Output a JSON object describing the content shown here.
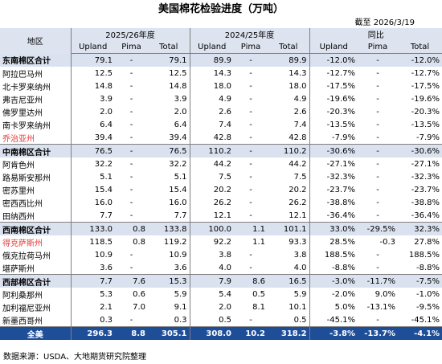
{
  "title": "美国棉花检验进度（万吨）",
  "as_of": "截至  2026/3/19",
  "header": {
    "region": "地区",
    "groups": [
      "2025/26年度",
      "2024/25年度",
      "同比"
    ],
    "cols": [
      "Upland",
      "Pima",
      "Total"
    ]
  },
  "rows": [
    {
      "type": "sub",
      "name": "东南棉区合计",
      "v": [
        "79.1",
        "-",
        "79.1",
        "89.9",
        "-",
        "89.9",
        "-12.0%",
        "-",
        "-12.0%"
      ]
    },
    {
      "type": "row",
      "name": "阿拉巴马州",
      "v": [
        "12.5",
        "-",
        "12.5",
        "14.3",
        "-",
        "14.3",
        "-12.7%",
        "-",
        "-12.7%"
      ]
    },
    {
      "type": "row",
      "name": "北卡罗来纳州",
      "v": [
        "14.8",
        "-",
        "14.8",
        "18.0",
        "-",
        "18.0",
        "-17.5%",
        "-",
        "-17.5%"
      ]
    },
    {
      "type": "row",
      "name": "弗吉尼亚州",
      "v": [
        "3.9",
        "-",
        "3.9",
        "4.9",
        "-",
        "4.9",
        "-19.6%",
        "-",
        "-19.6%"
      ]
    },
    {
      "type": "row",
      "name": "佛罗里达州",
      "v": [
        "2.0",
        "-",
        "2.0",
        "2.6",
        "-",
        "2.6",
        "-20.3%",
        "-",
        "-20.3%"
      ]
    },
    {
      "type": "row",
      "name": "南卡罗来纳州",
      "v": [
        "6.4",
        "-",
        "6.4",
        "7.4",
        "-",
        "7.4",
        "-13.5%",
        "-",
        "-13.5%"
      ]
    },
    {
      "type": "red",
      "name": "乔治亚州",
      "v": [
        "39.4",
        "-",
        "39.4",
        "42.8",
        "-",
        "42.8",
        "-7.9%",
        "-",
        "-7.9%"
      ]
    },
    {
      "type": "sub",
      "name": "中南棉区合计",
      "v": [
        "76.5",
        "-",
        "76.5",
        "110.2",
        "-",
        "110.2",
        "-30.6%",
        "-",
        "-30.6%"
      ]
    },
    {
      "type": "row",
      "name": "阿肯色州",
      "v": [
        "32.2",
        "-",
        "32.2",
        "44.2",
        "-",
        "44.2",
        "-27.1%",
        "-",
        "-27.1%"
      ]
    },
    {
      "type": "row",
      "name": "路易斯安那州",
      "v": [
        "5.1",
        "-",
        "5.1",
        "7.5",
        "-",
        "7.5",
        "-32.3%",
        "-",
        "-32.3%"
      ]
    },
    {
      "type": "row",
      "name": "密苏里州",
      "v": [
        "15.4",
        "-",
        "15.4",
        "20.2",
        "-",
        "20.2",
        "-23.7%",
        "-",
        "-23.7%"
      ]
    },
    {
      "type": "row",
      "name": "密西西比州",
      "v": [
        "16.0",
        "-",
        "16.0",
        "26.2",
        "-",
        "26.2",
        "-38.8%",
        "-",
        "-38.8%"
      ]
    },
    {
      "type": "row",
      "name": "田纳西州",
      "v": [
        "7.7",
        "-",
        "7.7",
        "12.1",
        "-",
        "12.1",
        "-36.4%",
        "-",
        "-36.4%"
      ]
    },
    {
      "type": "sub",
      "name": "西南棉区合计",
      "v": [
        "133.0",
        "0.8",
        "133.8",
        "100.0",
        "1.1",
        "101.1",
        "33.0%",
        "-29.5%",
        "32.3%"
      ]
    },
    {
      "type": "red",
      "name": "得克萨斯州",
      "v": [
        "118.5",
        "0.8",
        "119.2",
        "92.2",
        "1.1",
        "93.3",
        "28.5%",
        "-0.3",
        "27.8%"
      ]
    },
    {
      "type": "row",
      "name": "俄克拉荷马州",
      "v": [
        "10.9",
        "-",
        "10.9",
        "3.8",
        "-",
        "3.8",
        "188.5%",
        "-",
        "188.5%"
      ]
    },
    {
      "type": "row",
      "name": "堪萨斯州",
      "v": [
        "3.6",
        "-",
        "3.6",
        "4.0",
        "-",
        "4.0",
        "-8.8%",
        "-",
        "-8.8%"
      ]
    },
    {
      "type": "sub",
      "name": "西部棉区合计",
      "v": [
        "7.7",
        "7.6",
        "15.3",
        "7.9",
        "8.6",
        "16.5",
        "-3.0%",
        "-11.7%",
        "-7.5%"
      ]
    },
    {
      "type": "row",
      "name": "阿利桑那州",
      "v": [
        "5.3",
        "0.6",
        "5.9",
        "5.4",
        "0.5",
        "5.9",
        "-2.0%",
        "9.0%",
        "-1.0%"
      ]
    },
    {
      "type": "row",
      "name": "加利福尼亚州",
      "v": [
        "2.1",
        "7.0",
        "9.1",
        "2.0",
        "8.1",
        "10.1",
        "5.0%",
        "-13.1%",
        "-9.5%"
      ]
    },
    {
      "type": "row",
      "name": "新墨西哥州",
      "v": [
        "0.3",
        "-",
        "0.3",
        "0.5",
        "-",
        "0.5",
        "-45.1%",
        "-",
        "-45.1%"
      ]
    },
    {
      "type": "total",
      "name": "全美",
      "v": [
        "296.3",
        "8.8",
        "305.1",
        "308.0",
        "10.2",
        "318.2",
        "-3.8%",
        "-13.7%",
        "-4.1%"
      ]
    }
  ],
  "footer": "数据来源：USDA、大地期货研究院整理"
}
